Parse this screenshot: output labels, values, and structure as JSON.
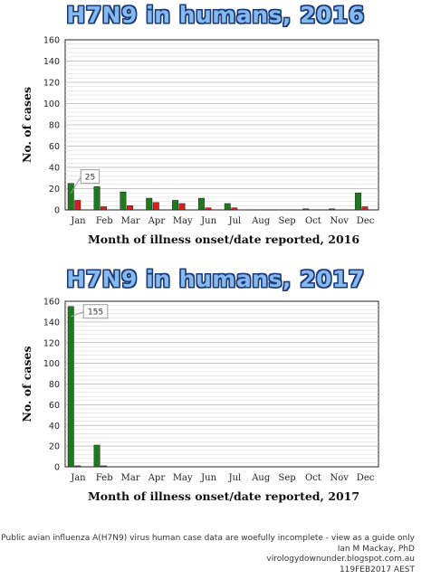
{
  "charts": [
    {
      "title": "H7N9 in humans, 2016",
      "xlabel": "Month of  illness onset/date reported, 2016",
      "ylabel": "No. of cases",
      "callout": "25"
    },
    {
      "title": "H7N9 in humans, 2017",
      "xlabel": "Month of  illness onset/date reported, 2017",
      "ylabel": "No. of cases",
      "callout": "155"
    }
  ],
  "colors": {
    "series_a": "#1f7a1f",
    "series_b": "#d42020",
    "title_fill": "#86b9ee",
    "title_outline": "#1b3a78"
  },
  "chart_data": [
    {
      "type": "bar",
      "title": "H7N9 in humans, 2016",
      "xlabel": "Month of  illness onset/date reported, 2016",
      "ylabel": "No. of cases",
      "categories": [
        "Jan",
        "Feb",
        "Mar",
        "Apr",
        "May",
        "Jun",
        "Jul",
        "Aug",
        "Sep",
        "Oct",
        "Nov",
        "Dec"
      ],
      "series": [
        {
          "color": "#1f7a1f",
          "values": [
            25,
            22,
            17,
            11,
            9,
            11,
            6,
            0,
            0,
            1,
            1,
            16
          ]
        },
        {
          "color": "#d42020",
          "values": [
            9,
            3,
            4,
            7,
            6,
            2,
            2,
            0,
            0,
            0,
            0,
            3
          ]
        }
      ],
      "ylim": [
        0,
        160
      ],
      "yticks": [
        0,
        20,
        40,
        60,
        80,
        100,
        120,
        140,
        160
      ],
      "annotation": {
        "text": "25",
        "category": "Jan"
      },
      "grid": true
    },
    {
      "type": "bar",
      "title": "H7N9 in humans, 2017",
      "xlabel": "Month of  illness onset/date reported, 2017",
      "ylabel": "No. of cases",
      "categories": [
        "Jan",
        "Feb",
        "Mar",
        "Apr",
        "May",
        "Jun",
        "Jul",
        "Aug",
        "Sep",
        "Oct",
        "Nov",
        "Dec"
      ],
      "series": [
        {
          "color": "#1f7a1f",
          "values": [
            155,
            21,
            0,
            0,
            0,
            0,
            0,
            0,
            0,
            0,
            0,
            0
          ]
        },
        {
          "color": "#d42020",
          "values": [
            1,
            1,
            0,
            0,
            0,
            0,
            0,
            0,
            0,
            0,
            0,
            0
          ]
        }
      ],
      "ylim": [
        0,
        160
      ],
      "yticks": [
        0,
        20,
        40,
        60,
        80,
        100,
        120,
        140,
        160
      ],
      "annotation": {
        "text": "155",
        "category": "Jan"
      },
      "grid": true
    }
  ],
  "footer": {
    "line1": "Public avian influenza A(H7N9) virus human case data are woefully incomplete - view as a guide only",
    "line2": "Ian M Mackay, PhD",
    "line3": "virologydownunder.blogspot.com.au",
    "line4": "119FEB2017 AEST"
  }
}
